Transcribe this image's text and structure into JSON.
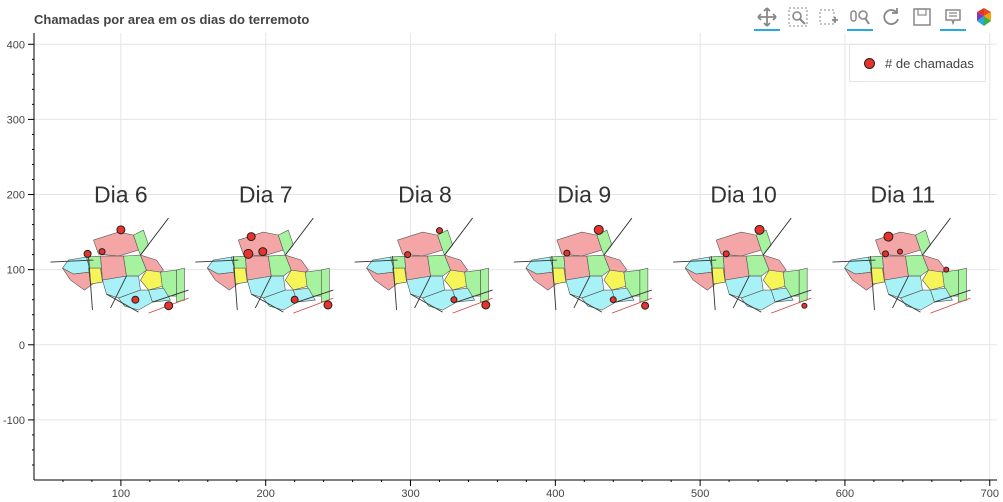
{
  "chart_data": {
    "type": "scatter",
    "title": "Chamadas por area em os dias do terremoto",
    "xlabel": "",
    "ylabel": "",
    "xlim": [
      40,
      705
    ],
    "ylim": [
      -180,
      415
    ],
    "x_ticks": [
      100,
      200,
      300,
      400,
      500,
      600,
      700
    ],
    "y_ticks": [
      -100,
      0,
      100,
      200,
      300,
      400
    ],
    "grid": true,
    "legend_position": "top-right",
    "panels": [
      {
        "label": "Dia 6",
        "x0": 50
      },
      {
        "label": "Dia 7",
        "x0": 150
      },
      {
        "label": "Dia 8",
        "x0": 260
      },
      {
        "label": "Dia 9",
        "x0": 370
      },
      {
        "label": "Dia 10",
        "x0": 480
      },
      {
        "label": "Dia 11",
        "x0": 590
      }
    ],
    "series": [
      {
        "name": "# de chamadas",
        "color": "#e8322c",
        "points": [
          {
            "x": 100,
            "y": 153,
            "r": 4
          },
          {
            "x": 77,
            "y": 121,
            "r": 3.5
          },
          {
            "x": 87,
            "y": 124,
            "r": 3
          },
          {
            "x": 110,
            "y": 60,
            "r": 3.5
          },
          {
            "x": 133,
            "y": 52,
            "r": 4
          },
          {
            "x": 190,
            "y": 144,
            "r": 4
          },
          {
            "x": 188,
            "y": 121,
            "r": 4.5
          },
          {
            "x": 198,
            "y": 124,
            "r": 4
          },
          {
            "x": 220,
            "y": 60,
            "r": 3.5
          },
          {
            "x": 243,
            "y": 53,
            "r": 4
          },
          {
            "x": 320,
            "y": 152,
            "r": 3
          },
          {
            "x": 298,
            "y": 120,
            "r": 3
          },
          {
            "x": 330,
            "y": 60,
            "r": 3
          },
          {
            "x": 352,
            "y": 53,
            "r": 4
          },
          {
            "x": 430,
            "y": 153,
            "r": 4.5
          },
          {
            "x": 408,
            "y": 122,
            "r": 3
          },
          {
            "x": 440,
            "y": 60,
            "r": 3
          },
          {
            "x": 462,
            "y": 52,
            "r": 3.5
          },
          {
            "x": 541,
            "y": 153,
            "r": 4.5
          },
          {
            "x": 518,
            "y": 121,
            "r": 3
          },
          {
            "x": 572,
            "y": 52,
            "r": 2.5
          },
          {
            "x": 630,
            "y": 144,
            "r": 4.5
          },
          {
            "x": 628,
            "y": 121,
            "r": 3
          },
          {
            "x": 638,
            "y": 124,
            "r": 2.5
          },
          {
            "x": 670,
            "y": 100,
            "r": 2.5
          }
        ]
      }
    ],
    "colors": {
      "marker": "#e8322c",
      "grid": "#e5e5e5",
      "axis": "#000000",
      "map_red": "#f4a6a6",
      "map_green": "#a6f29e",
      "map_cyan": "#a8f2f7",
      "map_yellow": "#f5f55a"
    }
  },
  "toolbar": {
    "tools": [
      {
        "name": "pan-icon",
        "active": true
      },
      {
        "name": "box-zoom-icon",
        "active": false
      },
      {
        "name": "box-select-icon",
        "active": false
      },
      {
        "name": "wheel-zoom-icon",
        "active": true
      },
      {
        "name": "reset-icon",
        "active": false
      },
      {
        "name": "save-icon",
        "active": false
      },
      {
        "name": "hover-icon",
        "active": true
      },
      {
        "name": "bokeh-logo-icon",
        "active": false
      }
    ]
  }
}
